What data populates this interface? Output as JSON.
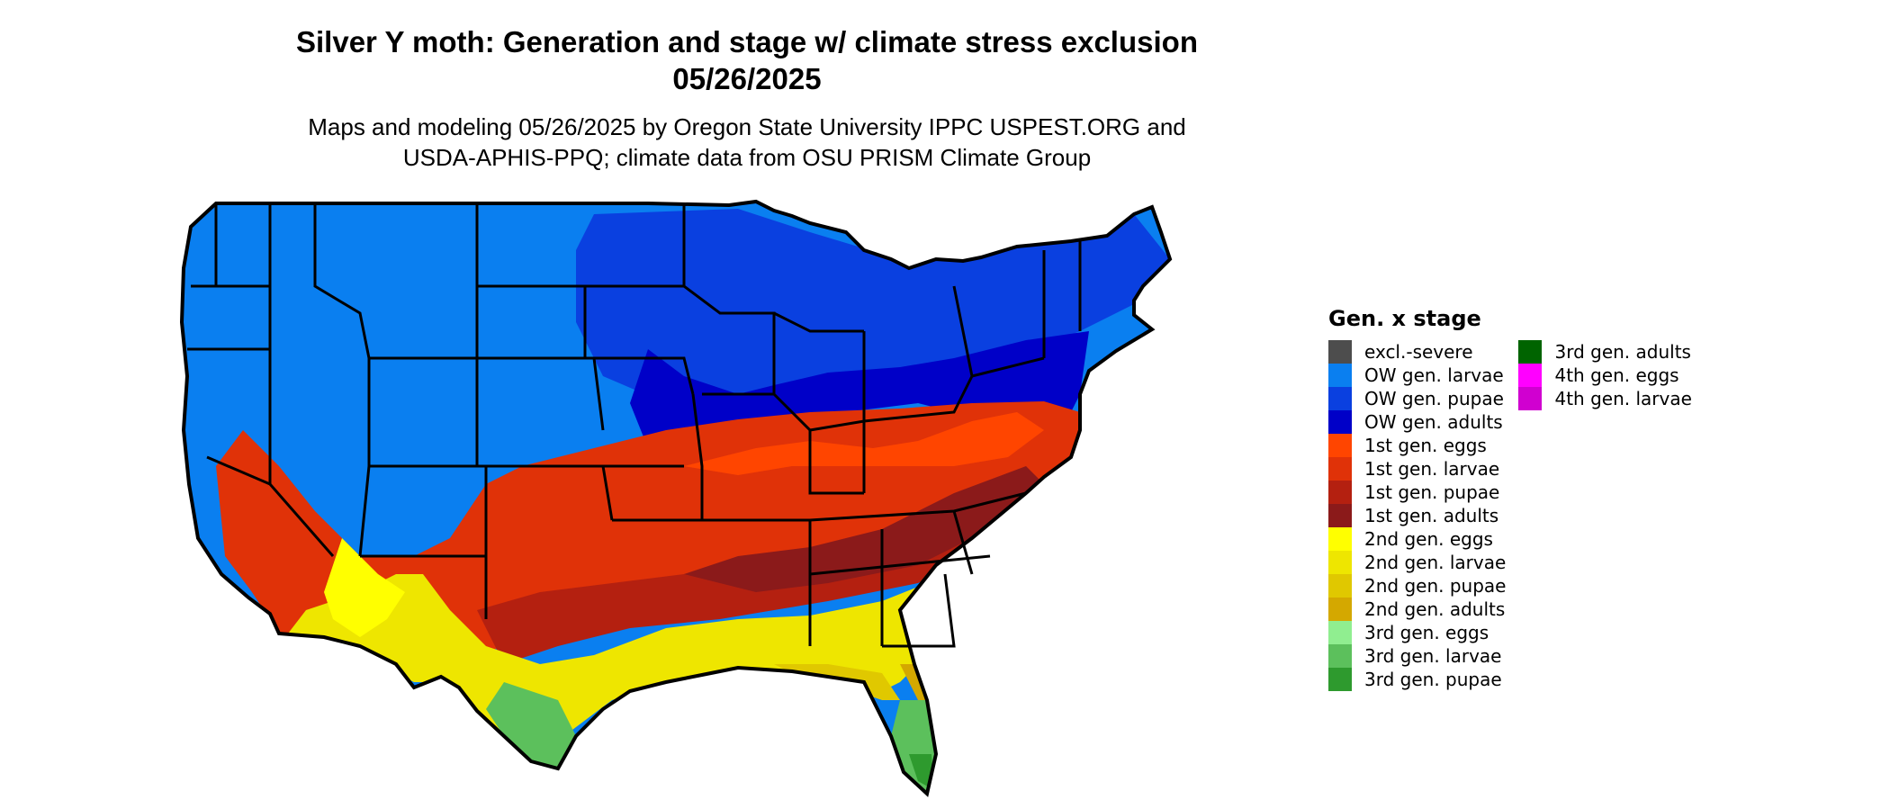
{
  "title_line1": "Silver Y moth: Generation and stage w/ climate stress exclusion",
  "title_line2": "05/26/2025",
  "subtitle_line1": "Maps and modeling 05/26/2025 by Oregon State University IPPC USPEST.ORG and",
  "subtitle_line2": "USDA-APHIS-PPQ; climate data from OSU PRISM Climate Group",
  "legend": {
    "title": "Gen. x stage",
    "col1": [
      {
        "label": "excl.-severe",
        "color": "#4d4d4d"
      },
      {
        "label": "OW gen. larvae",
        "color": "#0a7ff0"
      },
      {
        "label": "OW gen. pupae",
        "color": "#0a40e0"
      },
      {
        "label": "OW gen. adults",
        "color": "#0000c8"
      },
      {
        "label": "1st gen. eggs",
        "color": "#ff4500"
      },
      {
        "label": "1st gen. larvae",
        "color": "#e03208"
      },
      {
        "label": "1st gen. pupae",
        "color": "#b42010"
      },
      {
        "label": "1st gen. adults",
        "color": "#8b1a1a"
      },
      {
        "label": "2nd gen. eggs",
        "color": "#ffff00"
      },
      {
        "label": "2nd gen. larvae",
        "color": "#eee600"
      },
      {
        "label": "2nd gen. pupae",
        "color": "#e0c800"
      },
      {
        "label": "2nd gen. adults",
        "color": "#d4a800"
      },
      {
        "label": "3rd gen. eggs",
        "color": "#90ee90"
      },
      {
        "label": "3rd gen. larvae",
        "color": "#5cc05c"
      },
      {
        "label": "3rd gen. pupae",
        "color": "#2e9a2e"
      }
    ],
    "col2": [
      {
        "label": "3rd gen. adults",
        "color": "#006400"
      },
      {
        "label": "4th gen. eggs",
        "color": "#ff00ff"
      },
      {
        "label": "4th gen. larvae",
        "color": "#d000d0"
      }
    ]
  }
}
